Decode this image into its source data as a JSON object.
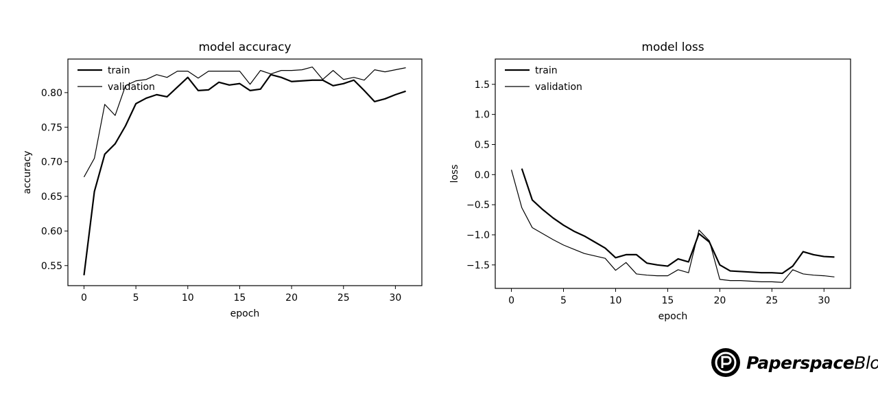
{
  "chart_data": [
    {
      "type": "line",
      "title": "model accuracy",
      "xlabel": "epoch",
      "ylabel": "accuracy",
      "xlim": [
        -1.55,
        32.55
      ],
      "ylim": [
        0.521,
        0.8485
      ],
      "xticks": [
        0,
        5,
        10,
        15,
        20,
        25,
        30
      ],
      "yticks": [
        0.55,
        0.6,
        0.65,
        0.7,
        0.75,
        0.8
      ],
      "ytick_labels": [
        "0.55",
        "0.60",
        "0.65",
        "0.70",
        "0.75",
        "0.80"
      ],
      "grid": false,
      "legend": "top-left",
      "x": [
        0,
        1,
        2,
        3,
        4,
        5,
        6,
        7,
        8,
        9,
        10,
        11,
        12,
        13,
        14,
        15,
        16,
        17,
        18,
        19,
        20,
        21,
        22,
        23,
        24,
        25,
        26,
        27,
        28,
        29,
        30,
        31
      ],
      "series": [
        {
          "name": "train",
          "color": "#000000",
          "values": [
            0.536,
            0.657,
            0.711,
            0.726,
            0.752,
            0.784,
            0.792,
            0.797,
            0.794,
            0.808,
            0.822,
            0.803,
            0.804,
            0.815,
            0.811,
            0.813,
            0.803,
            0.805,
            0.826,
            0.822,
            0.816,
            0.817,
            0.818,
            0.818,
            0.81,
            0.813,
            0.818,
            0.803,
            0.787,
            0.791,
            0.797,
            0.802
          ]
        },
        {
          "name": "validation",
          "color": "#000000",
          "values": [
            0.678,
            0.705,
            0.783,
            0.767,
            0.81,
            0.817,
            0.819,
            0.826,
            0.822,
            0.831,
            0.831,
            0.821,
            0.831,
            0.831,
            0.831,
            0.831,
            0.812,
            0.832,
            0.827,
            0.832,
            0.832,
            0.833,
            0.837,
            0.819,
            0.832,
            0.819,
            0.822,
            0.818,
            0.833,
            0.83,
            0.833,
            0.836
          ]
        }
      ]
    },
    {
      "type": "line",
      "title": "model loss",
      "xlabel": "epoch",
      "ylabel": "loss",
      "xlim": [
        -1.55,
        32.55
      ],
      "ylim": [
        -1.89,
        1.92
      ],
      "xticks": [
        0,
        5,
        10,
        15,
        20,
        25,
        30
      ],
      "yticks": [
        -1.5,
        -1.0,
        -0.5,
        0.0,
        0.5,
        1.0,
        1.5
      ],
      "ytick_labels": [
        "−1.5",
        "−1.0",
        "−0.5",
        "0.0",
        "0.5",
        "1.0",
        "1.5"
      ],
      "grid": false,
      "legend": "top-left",
      "x": [
        0,
        1,
        2,
        3,
        4,
        5,
        6,
        7,
        8,
        9,
        10,
        11,
        12,
        13,
        14,
        15,
        16,
        17,
        18,
        19,
        20,
        21,
        22,
        23,
        24,
        25,
        26,
        27,
        28,
        29,
        30,
        31
      ],
      "series": [
        {
          "name": "train",
          "color": "#000000",
          "values": [
            null,
            0.1,
            -0.42,
            -0.58,
            -0.72,
            -0.84,
            -0.94,
            -1.02,
            -1.12,
            -1.22,
            -1.38,
            -1.33,
            -1.33,
            -1.47,
            -1.5,
            -1.52,
            -1.4,
            -1.45,
            -0.98,
            -1.12,
            -1.5,
            -1.6,
            -1.61,
            -1.62,
            -1.63,
            -1.63,
            -1.64,
            -1.52,
            -1.28,
            -1.33,
            -1.36,
            -1.37
          ]
        },
        {
          "name": "validation",
          "color": "#000000",
          "values": [
            0.08,
            -0.55,
            -0.88,
            -0.98,
            -1.08,
            -1.17,
            -1.24,
            -1.31,
            -1.35,
            -1.39,
            -1.59,
            -1.46,
            -1.65,
            -1.67,
            -1.68,
            -1.68,
            -1.58,
            -1.63,
            -0.92,
            -1.1,
            -1.74,
            -1.76,
            -1.76,
            -1.77,
            -1.78,
            -1.78,
            -1.79,
            -1.58,
            -1.65,
            -1.67,
            -1.68,
            -1.7
          ]
        }
      ]
    }
  ],
  "watermark": {
    "brand": "Paperspace",
    "suffix": "Blog"
  }
}
